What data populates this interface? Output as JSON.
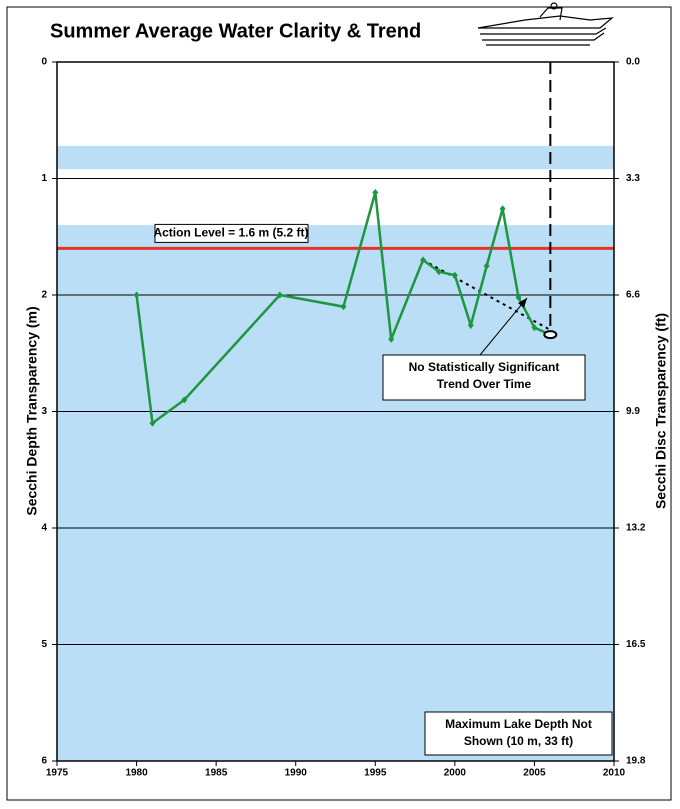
{
  "chart_data": {
    "type": "line",
    "title": "Summer Average Water Clarity & Trend",
    "y_label": "Secchi Depth Transparency (m)",
    "y2_label": "Secchi Disc Transparency (ft)",
    "xlim": [
      1975,
      2010
    ],
    "xticks": [
      1975,
      1980,
      1985,
      1990,
      1995,
      2000,
      2005,
      2010
    ],
    "ylim": [
      0,
      6
    ],
    "y_inverted": true,
    "yticks": [
      0,
      1,
      2,
      3,
      4,
      5,
      6
    ],
    "y2lim": [
      0,
      19.8
    ],
    "y2ticks": [
      {
        "value": 0,
        "label": "0.0"
      },
      3.3,
      6.6,
      9.9,
      13.2,
      16.5,
      19.8
    ],
    "grid": true,
    "bands": [
      [
        0.72,
        0.92
      ],
      [
        1.4,
        6
      ]
    ],
    "band_color": "#b9def5",
    "series": [
      {
        "color": "#1e9640",
        "x": [
          1980,
          1981,
          1983,
          1989,
          1993,
          1995,
          1996,
          1998,
          1999,
          2000,
          2001,
          2002,
          2003,
          2004,
          2005,
          2006
        ],
        "values": [
          2.0,
          3.1,
          2.9,
          2.0,
          2.1,
          1.12,
          2.38,
          1.7,
          1.8,
          1.83,
          2.26,
          1.75,
          1.26,
          2.02,
          2.28,
          2.34
        ]
      }
    ],
    "trend": {
      "x": [
        1998,
        2006
      ],
      "values": [
        1.7,
        2.3
      ]
    },
    "current_year": 2006,
    "action_level": {
      "value": 1.6,
      "color": "#e8322a",
      "label": "Action Level = 1.6 m (5.2 ft)"
    },
    "annotations": [
      {
        "lines": [
          "No Statistically Significant",
          "Trend Over Time"
        ]
      },
      {
        "lines": [
          "Maximum Lake Depth Not",
          "Shown (10 m, 33 ft)"
        ]
      }
    ]
  }
}
